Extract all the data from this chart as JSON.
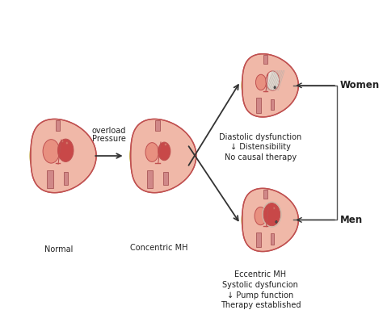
{
  "bg_color": "#ffffff",
  "heart_outer": "#f0b8a8",
  "heart_mid": "#e89080",
  "heart_inner_l": "#d06060",
  "heart_inner_r": "#c84848",
  "heart_wall": "#d87868",
  "pericardium": "#f5e8a0",
  "peri_edge": "#c8b860",
  "vessel_color": "#d08888",
  "vessel_edge": "#b06060",
  "outline_color": "#c05050",
  "fibrous_color": "#d0c8be",
  "arrow_color": "#333333",
  "line_color": "#555555",
  "text_color": "#222222",
  "labels": {
    "normal": "Normal",
    "concentric": "Concentric MH",
    "pressure_line1": "Pressure",
    "pressure_line2": "overload",
    "women": "Women",
    "men": "Men",
    "w1": "Diastolic dysfunction",
    "w2": "↓ Distensibility",
    "w3": "No causal therapy",
    "m1": "Eccentric MH",
    "m2": "Systolic dysfuncion",
    "m3": "↓ Pump function",
    "m4": "Therapy established"
  },
  "font_label": 7.0,
  "font_sex": 8.5
}
